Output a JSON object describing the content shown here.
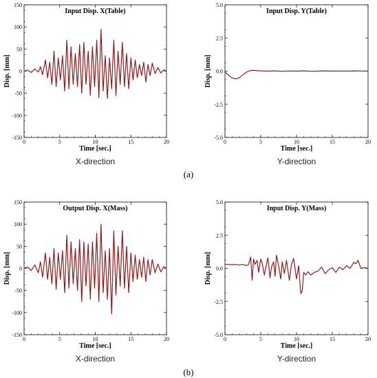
{
  "chart_data": [
    {
      "type": "line",
      "title": "Input Disp. X(Table)",
      "xlabel": "Time [sec.]",
      "ylabel": "Disp. [mm]",
      "xlim": [
        0,
        20
      ],
      "ylim": [
        -150,
        150
      ],
      "xticks": [
        "0",
        "5",
        "10",
        "15",
        "20"
      ],
      "yticks": [
        "150",
        "100",
        "50",
        "0",
        "-50",
        "-100",
        "-150"
      ],
      "caption": "X-direction",
      "color": "#8b1a1a",
      "x": [
        0,
        0.5,
        1,
        1.5,
        2,
        2.3,
        2.6,
        3,
        3.3,
        3.6,
        3.9,
        4.2,
        4.5,
        4.8,
        5.1,
        5.4,
        5.7,
        6,
        6.3,
        6.6,
        6.9,
        7.2,
        7.5,
        7.8,
        8.1,
        8.4,
        8.7,
        9,
        9.3,
        9.6,
        9.9,
        10.2,
        10.5,
        10.8,
        11.1,
        11.4,
        11.7,
        12,
        12.3,
        12.6,
        12.9,
        13.2,
        13.5,
        13.8,
        14.1,
        14.4,
        14.7,
        15,
        15.3,
        15.6,
        15.9,
        16.2,
        16.5,
        16.8,
        17.1,
        17.4,
        17.7,
        18,
        18.4,
        18.8,
        19.2,
        19.6,
        20
      ],
      "y": [
        0,
        2,
        -3,
        5,
        -2,
        10,
        -8,
        25,
        -15,
        20,
        -30,
        45,
        -35,
        30,
        -20,
        35,
        -45,
        70,
        -40,
        55,
        -30,
        40,
        -35,
        60,
        -50,
        65,
        -30,
        45,
        -55,
        55,
        -35,
        70,
        -60,
        95,
        -45,
        35,
        -62,
        30,
        -40,
        70,
        -55,
        45,
        -30,
        65,
        -35,
        40,
        -40,
        30,
        -20,
        25,
        -15,
        15,
        -10,
        20,
        -25,
        15,
        -10,
        18,
        -5,
        8,
        -4,
        3,
        0
      ]
    },
    {
      "type": "line",
      "title": "Input Disp. Y(Table)",
      "xlabel": "Time [sec.]",
      "ylabel": "Disp. [mm]",
      "xlim": [
        0,
        20
      ],
      "ylim": [
        -5,
        5
      ],
      "xticks": [
        "0",
        "5",
        "10",
        "15",
        "20"
      ],
      "yticks": [
        "5.0",
        "2.5",
        "0.0",
        "-2.5",
        "-5.0"
      ],
      "caption": "Y-direction",
      "color": "#8b1a1a",
      "x": [
        0,
        0.3,
        0.6,
        0.9,
        1.2,
        1.5,
        1.8,
        2.1,
        2.4,
        2.7,
        3,
        3.4,
        3.8,
        4.2,
        4.6,
        5,
        6,
        7,
        8,
        9,
        10,
        11,
        12,
        13,
        14,
        15,
        16,
        17,
        18,
        19,
        20
      ],
      "y": [
        -0.05,
        -0.2,
        -0.35,
        -0.48,
        -0.55,
        -0.58,
        -0.55,
        -0.45,
        -0.32,
        -0.2,
        -0.08,
        0.02,
        0.06,
        0.05,
        0.03,
        0.02,
        0.0,
        0.02,
        -0.01,
        0.01,
        0.0,
        0.02,
        -0.01,
        0.0,
        0.02,
        0.0,
        0.01,
        0.0,
        0.02,
        0.01,
        0.0
      ]
    },
    {
      "type": "line",
      "title": "Output Disp. X(Mass)",
      "xlabel": "Time [sec.]",
      "ylabel": "Disp. [mm]",
      "xlim": [
        0,
        20
      ],
      "ylim": [
        -150,
        150
      ],
      "xticks": [
        "0",
        "5",
        "10",
        "15",
        "20"
      ],
      "yticks": [
        "150",
        "100",
        "50",
        "0",
        "-50",
        "-100",
        "-150"
      ],
      "caption": "X-direction",
      "color": "#8b1a1a",
      "x": [
        0,
        0.5,
        1,
        1.5,
        2,
        2.3,
        2.6,
        3,
        3.3,
        3.6,
        3.9,
        4.2,
        4.5,
        4.8,
        5.1,
        5.4,
        5.7,
        6,
        6.3,
        6.6,
        6.9,
        7.2,
        7.5,
        7.8,
        8.1,
        8.4,
        8.7,
        9,
        9.3,
        9.6,
        9.9,
        10.2,
        10.5,
        10.8,
        11.1,
        11.4,
        11.7,
        12,
        12.3,
        12.6,
        12.9,
        13.2,
        13.5,
        13.8,
        14.1,
        14.4,
        14.7,
        15,
        15.3,
        15.6,
        15.9,
        16.2,
        16.5,
        16.8,
        17.1,
        17.4,
        17.7,
        18,
        18.4,
        18.8,
        19.2,
        19.6,
        20
      ],
      "y": [
        0,
        3,
        -5,
        8,
        -10,
        15,
        -20,
        35,
        -25,
        25,
        -35,
        45,
        -48,
        35,
        -25,
        40,
        -55,
        75,
        -45,
        60,
        -35,
        45,
        -50,
        65,
        -75,
        60,
        -40,
        55,
        -70,
        60,
        -45,
        80,
        -75,
        100,
        -55,
        40,
        -70,
        45,
        -103,
        85,
        -60,
        50,
        -40,
        85,
        -45,
        50,
        -55,
        35,
        -30,
        30,
        -25,
        20,
        -20,
        25,
        -30,
        20,
        -15,
        20,
        -10,
        10,
        -8,
        4,
        0
      ]
    },
    {
      "type": "line",
      "title": "Input Disp. Y(Mass)",
      "xlabel": "Time [sec.]",
      "ylabel": "Disp. [mm]",
      "xlim": [
        0,
        20
      ],
      "ylim": [
        -5,
        5
      ],
      "xticks": [
        "0",
        "5",
        "10",
        "15",
        "20"
      ],
      "yticks": [
        "5.0",
        "2.5",
        "0.0",
        "-2.5",
        "-5.0"
      ],
      "caption": "Y-direction",
      "color": "#8b1a1a",
      "x": [
        0,
        0.5,
        1,
        1.5,
        2,
        2.5,
        3,
        3.3,
        3.6,
        3.8,
        4,
        4.2,
        4.5,
        4.7,
        5,
        5.2,
        5.5,
        5.8,
        6,
        6.3,
        6.5,
        6.8,
        7,
        7.2,
        7.5,
        7.8,
        8,
        8.3,
        8.6,
        9,
        9.3,
        9.6,
        10,
        10.3,
        10.6,
        10.8,
        11,
        11.3,
        11.6,
        12,
        12.5,
        13,
        13.5,
        14,
        14.5,
        15,
        15.5,
        16,
        16.5,
        17,
        17.5,
        18,
        18.3,
        18.6,
        19,
        19.5,
        20
      ],
      "y": [
        0.3,
        0.3,
        0.28,
        0.3,
        0.25,
        0.3,
        0.2,
        0.3,
        0.85,
        -0.9,
        0.7,
        0.3,
        0.6,
        -0.3,
        0.7,
        0.4,
        -0.5,
        0.3,
        0.8,
        -0.7,
        0.1,
        0.5,
        -0.6,
        1.0,
        0.2,
        -0.8,
        0.5,
        -0.4,
        0.6,
        -0.9,
        0.3,
        0.75,
        -0.8,
        0.2,
        -1.9,
        -1.7,
        -0.3,
        -0.5,
        -0.25,
        -0.5,
        -0.3,
        -0.2,
        0.1,
        -0.4,
        -0.1,
        0.05,
        -0.3,
        0.1,
        -0.1,
        0.2,
        0.0,
        0.45,
        0.35,
        0.6,
        0.0,
        0.05,
        0.0
      ]
    }
  ],
  "panels": {
    "a": "(a)",
    "b": "(b)"
  }
}
